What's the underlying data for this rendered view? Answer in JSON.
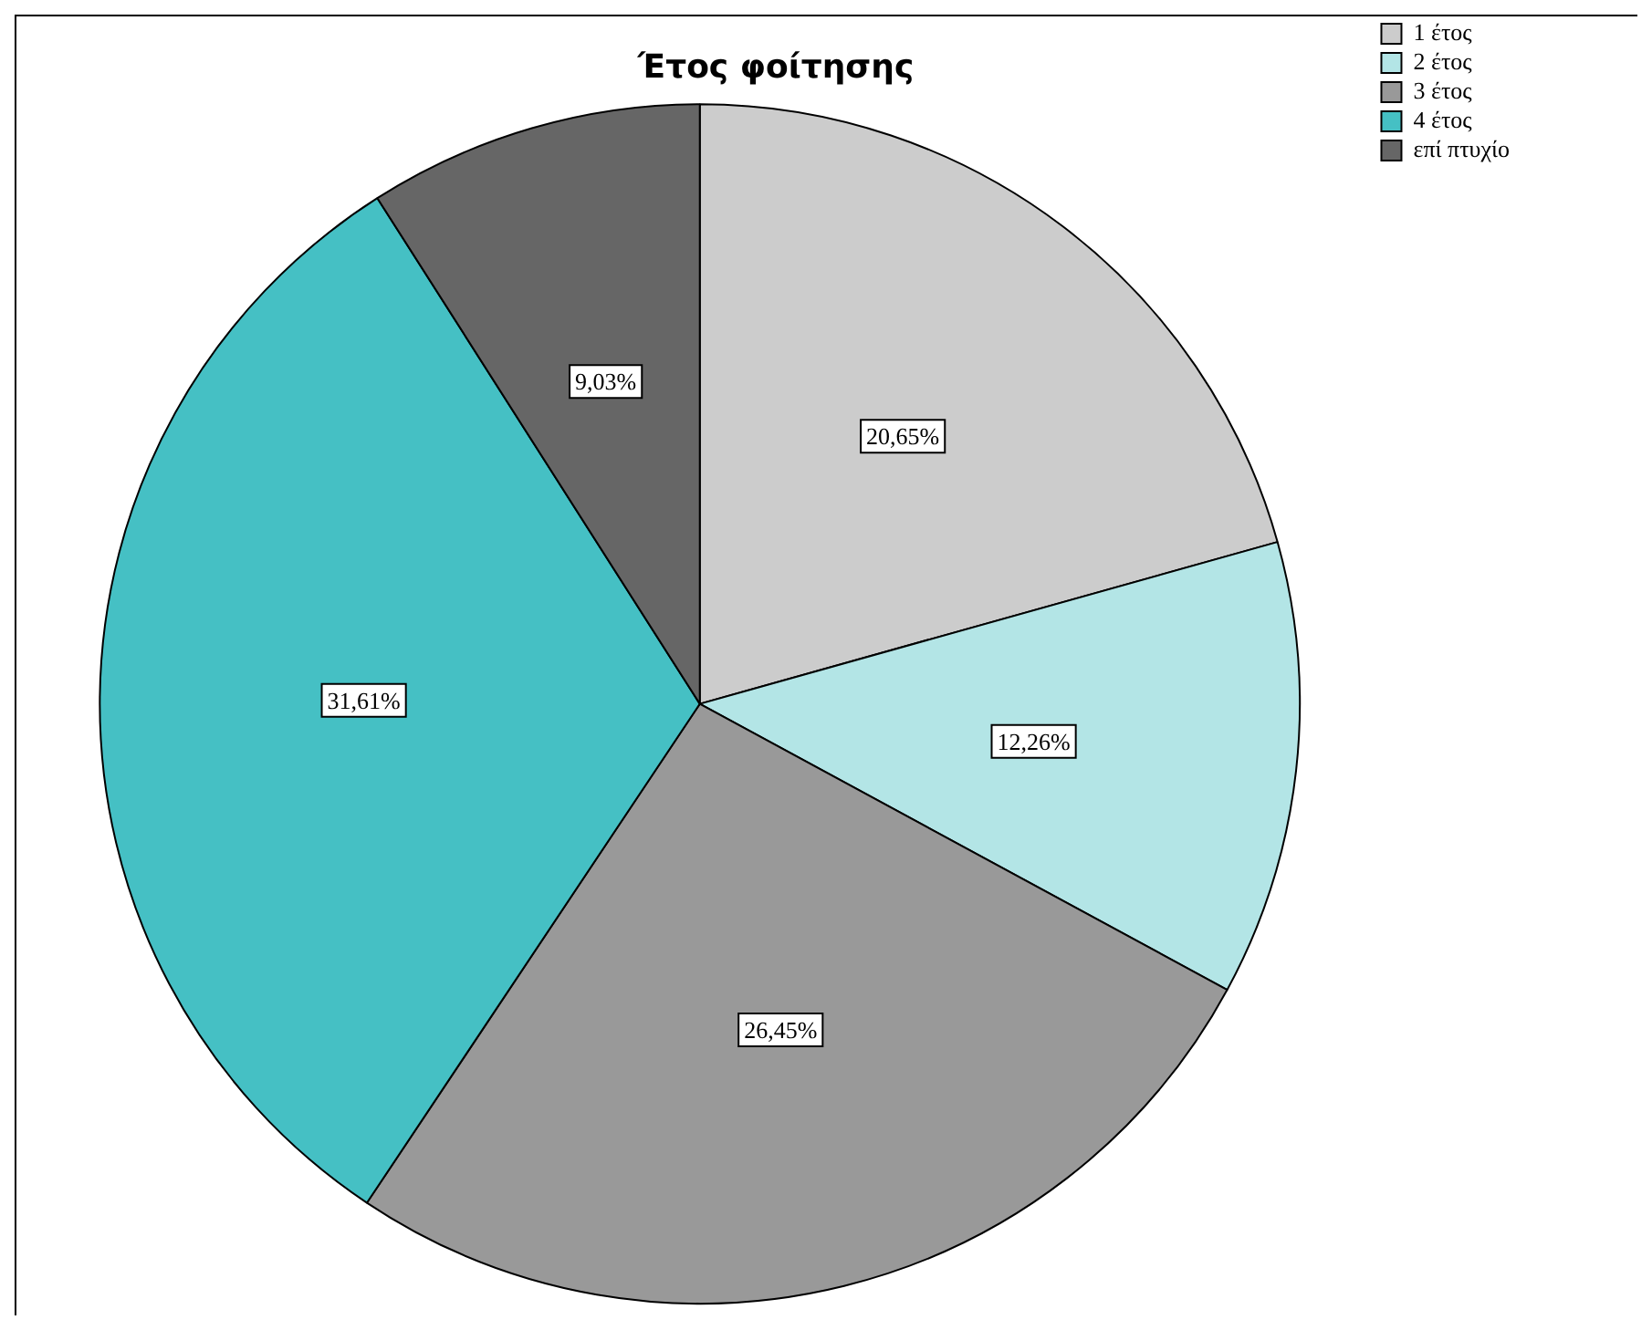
{
  "chart_data": {
    "type": "pie",
    "title": "Έτος φοίτησης",
    "categories": [
      "1 έτος",
      "2 έτος",
      "3 έτος",
      "4 έτος",
      "επί πτυχίο"
    ],
    "values": [
      20.65,
      12.26,
      26.45,
      31.61,
      9.03
    ],
    "colors": [
      "#cccccc",
      "#b3e5e6",
      "#999999",
      "#45c0c4",
      "#666666"
    ],
    "value_labels": [
      "20,65%",
      "12,26%",
      "26,45%",
      "31,61%",
      "9,03%"
    ],
    "legend": "top right"
  }
}
